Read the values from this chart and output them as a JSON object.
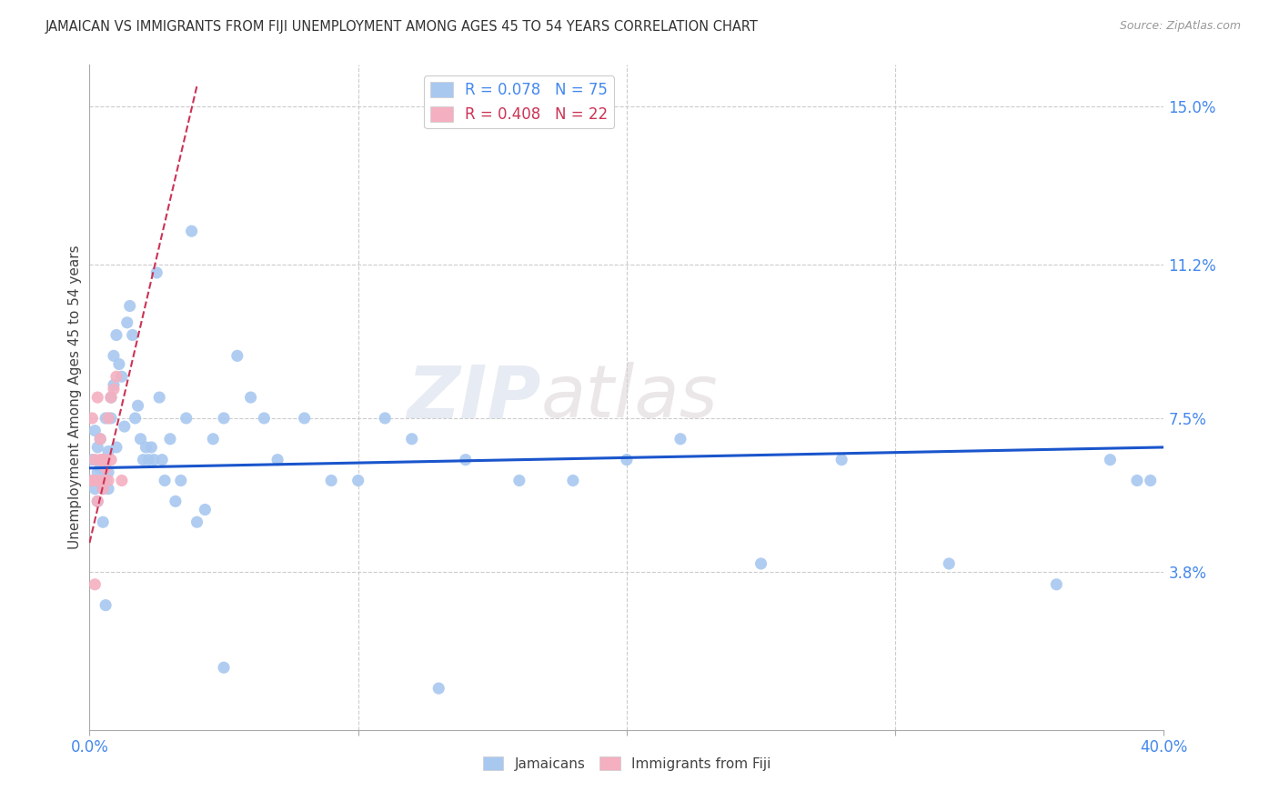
{
  "title": "JAMAICAN VS IMMIGRANTS FROM FIJI UNEMPLOYMENT AMONG AGES 45 TO 54 YEARS CORRELATION CHART",
  "source": "Source: ZipAtlas.com",
  "ylabel": "Unemployment Among Ages 45 to 54 years",
  "watermark": "ZIPatlas",
  "background_color": "#ffffff",
  "grid_color": "#cccccc",
  "jamaicans_color": "#a8c8f0",
  "fiji_color": "#f4afc0",
  "trend_jamaicans_color": "#1a55cc",
  "trend_fiji_color": "#cc3355",
  "legend_color1": "#a8c8f0",
  "legend_color2": "#f4afc0",
  "xlim": [
    0.0,
    0.4
  ],
  "ylim": [
    0.0,
    0.16
  ],
  "ytick_vals": [
    0.038,
    0.075,
    0.112,
    0.15
  ],
  "ytick_labels": [
    "3.8%",
    "7.5%",
    "11.2%",
    "15.0%"
  ],
  "xtick_vals": [
    0.0,
    0.1,
    0.2,
    0.3,
    0.4
  ],
  "xtick_labels": [
    "0.0%",
    "",
    "",
    "",
    "40.0%"
  ],
  "jamaicans_x": [
    0.001,
    0.001,
    0.002,
    0.002,
    0.003,
    0.003,
    0.003,
    0.004,
    0.004,
    0.005,
    0.005,
    0.005,
    0.005,
    0.006,
    0.006,
    0.006,
    0.007,
    0.007,
    0.007,
    0.008,
    0.008,
    0.009,
    0.009,
    0.01,
    0.01,
    0.011,
    0.012,
    0.013,
    0.014,
    0.015,
    0.016,
    0.017,
    0.018,
    0.019,
    0.02,
    0.021,
    0.022,
    0.023,
    0.024,
    0.025,
    0.026,
    0.027,
    0.028,
    0.03,
    0.032,
    0.034,
    0.036,
    0.038,
    0.04,
    0.043,
    0.046,
    0.05,
    0.055,
    0.06,
    0.065,
    0.07,
    0.08,
    0.09,
    0.1,
    0.11,
    0.12,
    0.14,
    0.16,
    0.18,
    0.2,
    0.22,
    0.25,
    0.28,
    0.32,
    0.36,
    0.38,
    0.39,
    0.395,
    0.05,
    0.13
  ],
  "jamaicans_y": [
    0.06,
    0.065,
    0.058,
    0.072,
    0.055,
    0.062,
    0.068,
    0.063,
    0.07,
    0.058,
    0.065,
    0.06,
    0.05,
    0.075,
    0.06,
    0.03,
    0.067,
    0.062,
    0.058,
    0.08,
    0.075,
    0.083,
    0.09,
    0.068,
    0.095,
    0.088,
    0.085,
    0.073,
    0.098,
    0.102,
    0.095,
    0.075,
    0.078,
    0.07,
    0.065,
    0.068,
    0.065,
    0.068,
    0.065,
    0.11,
    0.08,
    0.065,
    0.06,
    0.07,
    0.055,
    0.06,
    0.075,
    0.12,
    0.05,
    0.053,
    0.07,
    0.075,
    0.09,
    0.08,
    0.075,
    0.065,
    0.075,
    0.06,
    0.06,
    0.075,
    0.07,
    0.065,
    0.06,
    0.06,
    0.065,
    0.07,
    0.04,
    0.065,
    0.04,
    0.035,
    0.065,
    0.06,
    0.06,
    0.015,
    0.01
  ],
  "fiji_x": [
    0.001,
    0.001,
    0.002,
    0.002,
    0.003,
    0.003,
    0.004,
    0.004,
    0.005,
    0.005,
    0.005,
    0.006,
    0.006,
    0.007,
    0.007,
    0.008,
    0.008,
    0.009,
    0.01,
    0.012,
    0.001,
    0.003
  ],
  "fiji_y": [
    0.06,
    0.075,
    0.065,
    0.035,
    0.055,
    0.06,
    0.065,
    0.07,
    0.058,
    0.06,
    0.065,
    0.065,
    0.063,
    0.06,
    0.075,
    0.065,
    0.08,
    0.082,
    0.085,
    0.06,
    0.06,
    0.08
  ],
  "fiji_trend_x": [
    0.0,
    0.05
  ],
  "fiji_trend_y_start": 0.045,
  "fiji_trend_y_end": 0.155
}
